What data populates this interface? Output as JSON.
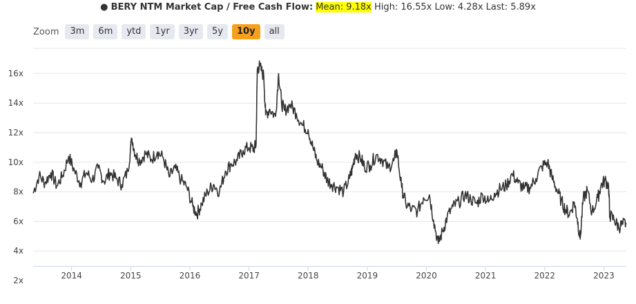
{
  "title": {
    "bullet": "●",
    "main": "BERY NTM Market Cap / Free Cash Flow:",
    "mean": "Mean: 9.18x",
    "high": "High: 16.55x",
    "low": "Low: 4.28x",
    "last": "Last: 5.89x"
  },
  "zoom": {
    "label": "Zoom",
    "buttons": [
      "3m",
      "6m",
      "ytd",
      "1yr",
      "3yr",
      "5y",
      "10y",
      "all"
    ],
    "active": "10y"
  },
  "colors": {
    "line": "#333333",
    "grid": "#e6e6e6",
    "active_zoom": "#f7a01c",
    "highlight": "#ffff00"
  },
  "chart_data": {
    "type": "line",
    "title": "BERY NTM Market Cap / Free Cash Flow",
    "ylim": [
      2,
      17
    ],
    "xlim": [
      2013.35,
      2023.38
    ],
    "y_ticks": [
      2,
      4,
      6,
      8,
      10,
      12,
      14,
      16
    ],
    "y_tick_labels": [
      "2x",
      "4x",
      "6x",
      "8x",
      "10x",
      "12x",
      "14x",
      "16x"
    ],
    "x_ticks": [
      2014,
      2015,
      2016,
      2017,
      2018,
      2019,
      2020,
      2021,
      2022,
      2023
    ],
    "x_tick_labels": [
      "2014",
      "2015",
      "2016",
      "2017",
      "2018",
      "2019",
      "2020",
      "2021",
      "2022",
      "2023"
    ],
    "grid": true,
    "series": [
      {
        "values": [
          [
            2013.35,
            7.9
          ],
          [
            2013.45,
            9.1
          ],
          [
            2013.55,
            8.6
          ],
          [
            2013.65,
            9.3
          ],
          [
            2013.75,
            8.4
          ],
          [
            2013.85,
            9.1
          ],
          [
            2013.95,
            10.4
          ],
          [
            2014.05,
            9.4
          ],
          [
            2014.15,
            8.6
          ],
          [
            2014.25,
            9.3
          ],
          [
            2014.35,
            8.8
          ],
          [
            2014.45,
            9.6
          ],
          [
            2014.55,
            8.7
          ],
          [
            2014.65,
            9.3
          ],
          [
            2014.75,
            8.9
          ],
          [
            2014.85,
            8.5
          ],
          [
            2014.95,
            9.4
          ],
          [
            2015.02,
            11.6
          ],
          [
            2015.08,
            10.5
          ],
          [
            2015.15,
            10.1
          ],
          [
            2015.25,
            10.6
          ],
          [
            2015.35,
            10.2
          ],
          [
            2015.45,
            10.7
          ],
          [
            2015.55,
            10.3
          ],
          [
            2015.65,
            9.0
          ],
          [
            2015.75,
            9.6
          ],
          [
            2015.85,
            8.8
          ],
          [
            2015.95,
            8.3
          ],
          [
            2016.05,
            7.0
          ],
          [
            2016.12,
            6.5
          ],
          [
            2016.2,
            7.2
          ],
          [
            2016.3,
            8.0
          ],
          [
            2016.4,
            8.5
          ],
          [
            2016.5,
            8.0
          ],
          [
            2016.6,
            9.4
          ],
          [
            2016.7,
            9.9
          ],
          [
            2016.8,
            10.1
          ],
          [
            2016.9,
            10.8
          ],
          [
            2017.0,
            11.0
          ],
          [
            2017.08,
            10.9
          ],
          [
            2017.12,
            11.2
          ],
          [
            2017.14,
            16.3
          ],
          [
            2017.18,
            16.5
          ],
          [
            2017.25,
            15.8
          ],
          [
            2017.28,
            13.2
          ],
          [
            2017.35,
            13.6
          ],
          [
            2017.45,
            13.1
          ],
          [
            2017.5,
            16.0
          ],
          [
            2017.55,
            14.0
          ],
          [
            2017.6,
            13.5
          ],
          [
            2017.7,
            13.9
          ],
          [
            2017.8,
            13.3
          ],
          [
            2017.9,
            12.5
          ],
          [
            2018.0,
            12.2
          ],
          [
            2018.08,
            11.0
          ],
          [
            2018.15,
            10.1
          ],
          [
            2018.25,
            9.5
          ],
          [
            2018.32,
            8.8
          ],
          [
            2018.4,
            8.5
          ],
          [
            2018.5,
            8.3
          ],
          [
            2018.6,
            8.0
          ],
          [
            2018.7,
            8.9
          ],
          [
            2018.75,
            9.6
          ],
          [
            2018.8,
            10.6
          ],
          [
            2018.9,
            10.2
          ],
          [
            2018.95,
            9.7
          ],
          [
            2019.05,
            9.8
          ],
          [
            2019.15,
            10.5
          ],
          [
            2019.25,
            10.2
          ],
          [
            2019.35,
            9.6
          ],
          [
            2019.45,
            10.1
          ],
          [
            2019.5,
            10.8
          ],
          [
            2019.58,
            8.3
          ],
          [
            2019.65,
            7.2
          ],
          [
            2019.75,
            6.8
          ],
          [
            2019.85,
            6.7
          ],
          [
            2019.95,
            7.6
          ],
          [
            2020.05,
            7.8
          ],
          [
            2020.12,
            6.1
          ],
          [
            2020.2,
            4.5
          ],
          [
            2020.28,
            5.4
          ],
          [
            2020.35,
            6.3
          ],
          [
            2020.45,
            7.0
          ],
          [
            2020.55,
            7.3
          ],
          [
            2020.65,
            7.8
          ],
          [
            2020.75,
            7.5
          ],
          [
            2020.85,
            7.2
          ],
          [
            2020.95,
            7.8
          ],
          [
            2021.05,
            7.3
          ],
          [
            2021.15,
            7.9
          ],
          [
            2021.25,
            8.2
          ],
          [
            2021.35,
            8.4
          ],
          [
            2021.45,
            9.2
          ],
          [
            2021.55,
            8.6
          ],
          [
            2021.65,
            8.2
          ],
          [
            2021.75,
            8.3
          ],
          [
            2021.85,
            8.9
          ],
          [
            2021.95,
            9.7
          ],
          [
            2022.05,
            10.0
          ],
          [
            2022.12,
            9.0
          ],
          [
            2022.2,
            8.2
          ],
          [
            2022.28,
            7.4
          ],
          [
            2022.35,
            6.8
          ],
          [
            2022.42,
            6.5
          ],
          [
            2022.5,
            7.3
          ],
          [
            2022.55,
            6.2
          ],
          [
            2022.6,
            4.8
          ],
          [
            2022.65,
            7.5
          ],
          [
            2022.72,
            8.1
          ],
          [
            2022.8,
            6.6
          ],
          [
            2022.9,
            7.6
          ],
          [
            2022.95,
            8.4
          ],
          [
            2023.02,
            8.8
          ],
          [
            2023.08,
            8.4
          ],
          [
            2023.1,
            6.4
          ],
          [
            2023.18,
            6.1
          ],
          [
            2023.25,
            5.6
          ],
          [
            2023.32,
            5.8
          ],
          [
            2023.38,
            5.89
          ]
        ]
      }
    ]
  }
}
